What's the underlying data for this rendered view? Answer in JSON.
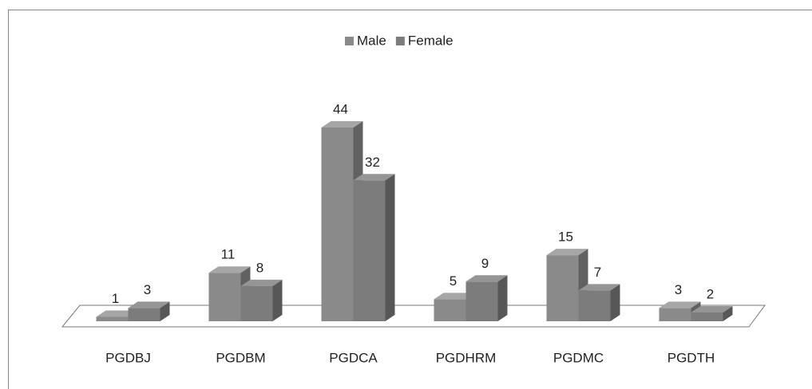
{
  "chart_data": {
    "type": "bar3d",
    "categories": [
      "PGDBJ",
      "PGDBM",
      "PGDCA",
      "PGDHRM",
      "PGDMC",
      "PGDTH"
    ],
    "series": [
      {
        "name": "Male",
        "color": "#8a8a8a",
        "values": [
          1,
          11,
          44,
          5,
          15,
          3
        ]
      },
      {
        "name": "Female",
        "color": "#7c7c7c",
        "values": [
          3,
          8,
          32,
          9,
          7,
          2
        ]
      }
    ],
    "legend": "top"
  }
}
